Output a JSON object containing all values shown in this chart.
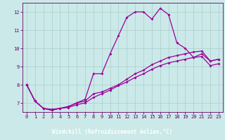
{
  "bg_color": "#cbe9e9",
  "plot_bg_color": "#cbe9e9",
  "bottom_bar_color": "#660066",
  "grid_color": "#aacccc",
  "line_color": "#990099",
  "marker": "D",
  "markersize": 2,
  "linewidth": 0.9,
  "xlabel": "Windchill (Refroidissement éolien,°C)",
  "xlabel_color": "#ffffff",
  "xlabel_fontsize": 5.5,
  "tick_color": "#660066",
  "tick_fontsize": 5,
  "xlim": [
    -0.5,
    23.5
  ],
  "ylim": [
    6.5,
    12.5
  ],
  "yticks": [
    7,
    8,
    9,
    10,
    11,
    12
  ],
  "xticks": [
    0,
    1,
    2,
    3,
    4,
    5,
    6,
    7,
    8,
    9,
    10,
    11,
    12,
    13,
    14,
    15,
    16,
    17,
    18,
    19,
    20,
    21,
    22,
    23
  ],
  "curve1_x": [
    0,
    1,
    2,
    3,
    4,
    5,
    6,
    7,
    8,
    9,
    10,
    11,
    12,
    13,
    14,
    15,
    16,
    17,
    18,
    19,
    20,
    21,
    22,
    23
  ],
  "curve1_y": [
    8.0,
    7.1,
    6.7,
    6.6,
    6.7,
    6.8,
    7.0,
    7.2,
    8.6,
    8.6,
    9.7,
    10.7,
    11.7,
    12.0,
    12.0,
    11.6,
    12.2,
    11.85,
    10.3,
    10.0,
    9.5,
    9.7,
    9.3,
    9.4
  ],
  "curve2_x": [
    0,
    1,
    2,
    3,
    4,
    5,
    6,
    7,
    8,
    9,
    10,
    11,
    12,
    13,
    14,
    15,
    16,
    17,
    18,
    19,
    20,
    21,
    22,
    23
  ],
  "curve2_y": [
    8.0,
    7.1,
    6.7,
    6.65,
    6.7,
    6.8,
    7.0,
    7.1,
    7.5,
    7.6,
    7.8,
    8.0,
    8.3,
    8.6,
    8.8,
    9.1,
    9.3,
    9.5,
    9.6,
    9.7,
    9.8,
    9.85,
    9.3,
    9.4
  ],
  "curve3_x": [
    0,
    1,
    2,
    3,
    4,
    5,
    6,
    7,
    8,
    9,
    10,
    11,
    12,
    13,
    14,
    15,
    16,
    17,
    18,
    19,
    20,
    21,
    22,
    23
  ],
  "curve3_y": [
    8.0,
    7.1,
    6.7,
    6.6,
    6.7,
    6.75,
    6.9,
    7.0,
    7.3,
    7.5,
    7.7,
    7.95,
    8.15,
    8.4,
    8.6,
    8.85,
    9.05,
    9.2,
    9.3,
    9.4,
    9.5,
    9.55,
    9.05,
    9.15
  ]
}
